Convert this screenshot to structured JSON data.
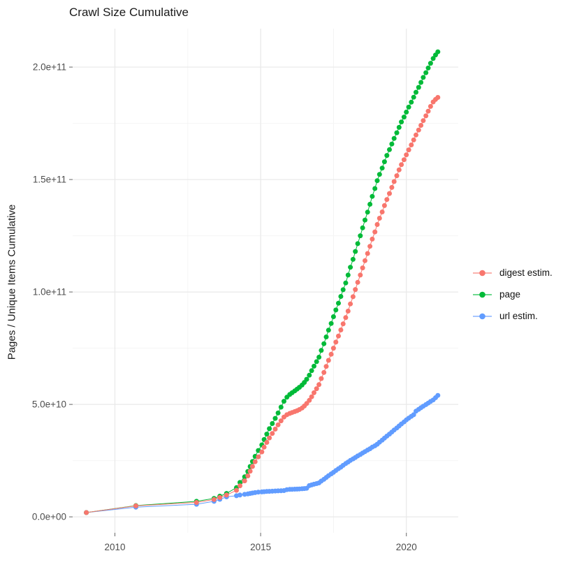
{
  "title": "Crawl Size Cumulative",
  "y_axis": {
    "label": "Pages / Unique Items Cumulative"
  },
  "legend": {
    "items": [
      {
        "label": "digest estim.",
        "color": "#F8766D"
      },
      {
        "label": "page",
        "color": "#00BA38"
      },
      {
        "label": "url estim.",
        "color": "#619CFF"
      }
    ]
  },
  "colors": {
    "background": "#FFFFFF",
    "grid_major": "#E8E8E8",
    "grid_minor": "#F4F4F4",
    "tick_mark": "#666666",
    "tick_text": "#4D4D4D"
  },
  "chart_data": {
    "type": "scatter",
    "title": "Crawl Size Cumulative",
    "xlabel": "",
    "ylabel": "Pages / Unique Items Cumulative",
    "points_unit": "billions of pages (1e9)",
    "xlim": [
      2008.55,
      2021.78
    ],
    "ylim": [
      -7.1,
      217.1
    ],
    "grid": "major+minor",
    "legend_position": "right",
    "x_ticks": [
      {
        "value": 2010,
        "label": "2010"
      },
      {
        "value": 2015,
        "label": "2015"
      },
      {
        "value": 2020,
        "label": "2020"
      }
    ],
    "x_minor": [
      2012.5,
      2017.5
    ],
    "y_ticks": [
      {
        "value": 0,
        "label": "0.0e+00"
      },
      {
        "value": 50,
        "label": "5.0e+10"
      },
      {
        "value": 100,
        "label": "1.0e+11"
      },
      {
        "value": 150,
        "label": "1.5e+11"
      },
      {
        "value": 200,
        "label": "2.0e+11"
      }
    ],
    "y_minor": [
      25,
      75,
      125,
      175
    ],
    "series": [
      {
        "name": "digest estim.",
        "color": "#F8766D",
        "points": [
          [
            2009.02,
            1.9
          ],
          [
            2010.72,
            4.9
          ],
          [
            2012.8,
            6.4
          ],
          [
            2013.4,
            7.7
          ],
          [
            2013.6,
            8.6
          ],
          [
            2013.83,
            9.7
          ],
          [
            2014.17,
            11.8
          ],
          [
            2014.29,
            13.8
          ],
          [
            2014.45,
            16.0
          ],
          [
            2014.56,
            18.2
          ],
          [
            2014.64,
            20.3
          ],
          [
            2014.72,
            22.4
          ],
          [
            2014.81,
            24.5
          ],
          [
            2014.92,
            26.7
          ],
          [
            2015.04,
            28.9
          ],
          [
            2015.12,
            31.0
          ],
          [
            2015.21,
            33.1
          ],
          [
            2015.3,
            35.1
          ],
          [
            2015.4,
            37.1
          ],
          [
            2015.5,
            39.0
          ],
          [
            2015.6,
            40.9
          ],
          [
            2015.7,
            42.7
          ],
          [
            2015.8,
            44.4
          ],
          [
            2015.9,
            45.4
          ],
          [
            2016.0,
            46.0
          ],
          [
            2016.08,
            46.4
          ],
          [
            2016.17,
            46.8
          ],
          [
            2016.25,
            47.2
          ],
          [
            2016.33,
            47.7
          ],
          [
            2016.42,
            48.4
          ],
          [
            2016.5,
            49.3
          ],
          [
            2016.58,
            50.4
          ],
          [
            2016.67,
            51.8
          ],
          [
            2016.75,
            53.4
          ],
          [
            2016.83,
            55.2
          ],
          [
            2016.92,
            57.0
          ],
          [
            2017.0,
            58.8
          ],
          [
            2017.08,
            61.5
          ],
          [
            2017.17,
            64.2
          ],
          [
            2017.25,
            66.9
          ],
          [
            2017.33,
            69.6
          ],
          [
            2017.42,
            72.3
          ],
          [
            2017.5,
            75.0
          ],
          [
            2017.58,
            77.7
          ],
          [
            2017.67,
            80.4
          ],
          [
            2017.75,
            83.1
          ],
          [
            2017.83,
            85.8
          ],
          [
            2017.92,
            88.6
          ],
          [
            2018.0,
            91.5
          ],
          [
            2018.08,
            94.7
          ],
          [
            2018.17,
            97.9
          ],
          [
            2018.25,
            101.1
          ],
          [
            2018.33,
            104.3
          ],
          [
            2018.42,
            107.5
          ],
          [
            2018.5,
            110.7
          ],
          [
            2018.58,
            113.9
          ],
          [
            2018.67,
            117.1
          ],
          [
            2018.75,
            120.3
          ],
          [
            2018.83,
            123.5
          ],
          [
            2018.92,
            126.7
          ],
          [
            2019.0,
            130.0
          ],
          [
            2019.08,
            132.8
          ],
          [
            2019.17,
            135.6
          ],
          [
            2019.25,
            138.4
          ],
          [
            2019.33,
            141.1
          ],
          [
            2019.42,
            143.8
          ],
          [
            2019.5,
            146.5
          ],
          [
            2019.58,
            149.1
          ],
          [
            2019.67,
            151.7
          ],
          [
            2019.75,
            154.3
          ],
          [
            2019.83,
            156.6
          ],
          [
            2019.92,
            158.8
          ],
          [
            2020.0,
            161.0
          ],
          [
            2020.08,
            163.2
          ],
          [
            2020.17,
            165.4
          ],
          [
            2020.25,
            167.6
          ],
          [
            2020.33,
            169.8
          ],
          [
            2020.42,
            172.0
          ],
          [
            2020.5,
            174.1
          ],
          [
            2020.58,
            176.2
          ],
          [
            2020.67,
            178.3
          ],
          [
            2020.75,
            180.4
          ],
          [
            2020.83,
            182.5
          ],
          [
            2020.92,
            184.5
          ],
          [
            2021.0,
            185.6
          ],
          [
            2021.08,
            186.5
          ]
        ]
      },
      {
        "name": "page",
        "color": "#00BA38",
        "points": [
          [
            2009.02,
            1.9
          ],
          [
            2010.72,
            5.0
          ],
          [
            2012.8,
            6.9
          ],
          [
            2013.4,
            8.2
          ],
          [
            2013.6,
            9.2
          ],
          [
            2013.83,
            10.4
          ],
          [
            2014.17,
            13.0
          ],
          [
            2014.29,
            15.3
          ],
          [
            2014.45,
            17.8
          ],
          [
            2014.56,
            20.2
          ],
          [
            2014.64,
            22.4
          ],
          [
            2014.72,
            24.6
          ],
          [
            2014.81,
            26.9
          ],
          [
            2014.92,
            29.5
          ],
          [
            2015.04,
            32.0
          ],
          [
            2015.12,
            34.4
          ],
          [
            2015.21,
            36.8
          ],
          [
            2015.3,
            39.2
          ],
          [
            2015.4,
            41.5
          ],
          [
            2015.5,
            43.8
          ],
          [
            2015.6,
            46.2
          ],
          [
            2015.7,
            48.8
          ],
          [
            2015.8,
            51.4
          ],
          [
            2015.9,
            53.2
          ],
          [
            2016.0,
            54.4
          ],
          [
            2016.08,
            55.2
          ],
          [
            2016.17,
            56.0
          ],
          [
            2016.25,
            56.8
          ],
          [
            2016.33,
            57.6
          ],
          [
            2016.42,
            58.6
          ],
          [
            2016.5,
            59.8
          ],
          [
            2016.58,
            61.2
          ],
          [
            2016.67,
            63.0
          ],
          [
            2016.75,
            65.0
          ],
          [
            2016.83,
            67.0
          ],
          [
            2016.92,
            69.0
          ],
          [
            2017.0,
            71.0
          ],
          [
            2017.08,
            74.0
          ],
          [
            2017.17,
            77.0
          ],
          [
            2017.25,
            80.0
          ],
          [
            2017.33,
            83.0
          ],
          [
            2017.42,
            86.0
          ],
          [
            2017.5,
            89.0
          ],
          [
            2017.58,
            92.0
          ],
          [
            2017.67,
            95.0
          ],
          [
            2017.75,
            98.0
          ],
          [
            2017.83,
            101.0
          ],
          [
            2017.92,
            104.0
          ],
          [
            2018.0,
            107.5
          ],
          [
            2018.08,
            111.0
          ],
          [
            2018.17,
            114.5
          ],
          [
            2018.25,
            118.0
          ],
          [
            2018.33,
            121.5
          ],
          [
            2018.42,
            125.0
          ],
          [
            2018.5,
            128.5
          ],
          [
            2018.58,
            132.0
          ],
          [
            2018.67,
            135.5
          ],
          [
            2018.75,
            139.0
          ],
          [
            2018.83,
            142.5
          ],
          [
            2018.92,
            146.0
          ],
          [
            2019.0,
            149.5
          ],
          [
            2019.08,
            152.3
          ],
          [
            2019.17,
            155.1
          ],
          [
            2019.25,
            157.9
          ],
          [
            2019.33,
            160.7
          ],
          [
            2019.42,
            163.3
          ],
          [
            2019.5,
            165.8
          ],
          [
            2019.58,
            168.3
          ],
          [
            2019.67,
            170.8
          ],
          [
            2019.75,
            173.2
          ],
          [
            2019.83,
            175.6
          ],
          [
            2019.92,
            177.8
          ],
          [
            2020.0,
            180.0
          ],
          [
            2020.08,
            182.2
          ],
          [
            2020.17,
            184.4
          ],
          [
            2020.25,
            186.6
          ],
          [
            2020.33,
            188.8
          ],
          [
            2020.42,
            191.0
          ],
          [
            2020.5,
            193.2
          ],
          [
            2020.58,
            195.4
          ],
          [
            2020.67,
            197.5
          ],
          [
            2020.75,
            199.6
          ],
          [
            2020.83,
            201.7
          ],
          [
            2020.92,
            203.8
          ],
          [
            2021.0,
            205.4
          ],
          [
            2021.08,
            206.8
          ]
        ]
      },
      {
        "name": "url estim.",
        "color": "#619CFF",
        "points": [
          [
            2009.02,
            1.9
          ],
          [
            2010.72,
            4.3
          ],
          [
            2012.8,
            5.6
          ],
          [
            2013.4,
            6.9
          ],
          [
            2013.6,
            7.8
          ],
          [
            2013.83,
            8.9
          ],
          [
            2014.17,
            9.4
          ],
          [
            2014.29,
            9.7
          ],
          [
            2014.45,
            10.0
          ],
          [
            2014.56,
            10.2
          ],
          [
            2014.64,
            10.4
          ],
          [
            2014.72,
            10.6
          ],
          [
            2014.81,
            10.8
          ],
          [
            2014.92,
            11.0
          ],
          [
            2015.04,
            11.1
          ],
          [
            2015.12,
            11.2
          ],
          [
            2015.21,
            11.3
          ],
          [
            2015.3,
            11.35
          ],
          [
            2015.4,
            11.4
          ],
          [
            2015.5,
            11.5
          ],
          [
            2015.6,
            11.55
          ],
          [
            2015.7,
            11.6
          ],
          [
            2015.8,
            11.7
          ],
          [
            2015.9,
            12.1
          ],
          [
            2016.0,
            12.2
          ],
          [
            2016.08,
            12.25
          ],
          [
            2016.17,
            12.3
          ],
          [
            2016.25,
            12.35
          ],
          [
            2016.33,
            12.4
          ],
          [
            2016.42,
            12.5
          ],
          [
            2016.5,
            12.6
          ],
          [
            2016.58,
            12.7
          ],
          [
            2016.67,
            13.9
          ],
          [
            2016.75,
            14.2
          ],
          [
            2016.83,
            14.5
          ],
          [
            2016.92,
            14.8
          ],
          [
            2017.0,
            15.1
          ],
          [
            2017.08,
            15.9
          ],
          [
            2017.17,
            16.7
          ],
          [
            2017.25,
            17.5
          ],
          [
            2017.33,
            18.3
          ],
          [
            2017.42,
            19.1
          ],
          [
            2017.5,
            19.8
          ],
          [
            2017.58,
            20.6
          ],
          [
            2017.67,
            21.4
          ],
          [
            2017.75,
            22.1
          ],
          [
            2017.83,
            22.9
          ],
          [
            2017.92,
            23.7
          ],
          [
            2018.0,
            24.4
          ],
          [
            2018.08,
            25.1
          ],
          [
            2018.17,
            25.8
          ],
          [
            2018.25,
            26.4
          ],
          [
            2018.33,
            27.1
          ],
          [
            2018.42,
            27.7
          ],
          [
            2018.5,
            28.4
          ],
          [
            2018.58,
            29.0
          ],
          [
            2018.67,
            29.7
          ],
          [
            2018.75,
            30.3
          ],
          [
            2018.83,
            31.0
          ],
          [
            2018.92,
            31.6
          ],
          [
            2019.0,
            32.3
          ],
          [
            2019.08,
            33.2
          ],
          [
            2019.17,
            34.1
          ],
          [
            2019.25,
            35.0
          ],
          [
            2019.33,
            35.9
          ],
          [
            2019.42,
            36.8
          ],
          [
            2019.5,
            37.7
          ],
          [
            2019.58,
            38.6
          ],
          [
            2019.67,
            39.5
          ],
          [
            2019.75,
            40.4
          ],
          [
            2019.83,
            41.3
          ],
          [
            2019.92,
            42.2
          ],
          [
            2020.0,
            43.1
          ],
          [
            2020.08,
            43.9
          ],
          [
            2020.17,
            44.7
          ],
          [
            2020.25,
            45.4
          ],
          [
            2020.33,
            47.0
          ],
          [
            2020.42,
            47.8
          ],
          [
            2020.5,
            48.5
          ],
          [
            2020.58,
            49.2
          ],
          [
            2020.67,
            49.9
          ],
          [
            2020.75,
            50.6
          ],
          [
            2020.83,
            51.3
          ],
          [
            2020.92,
            52.0
          ],
          [
            2021.0,
            53.0
          ],
          [
            2021.08,
            54.0
          ]
        ]
      }
    ]
  }
}
